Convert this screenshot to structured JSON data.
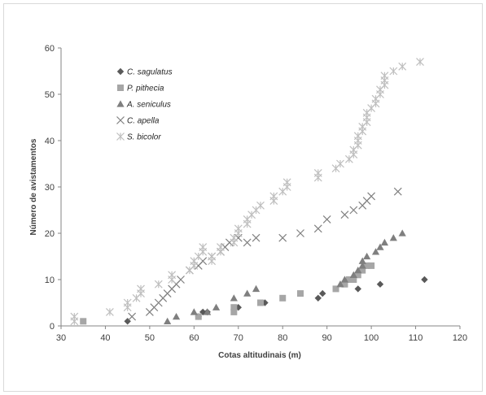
{
  "chart_data": {
    "type": "scatter",
    "xlabel": "Cotas altitudinais (m)",
    "ylabel": "Número de avistamentos",
    "xlim": [
      30,
      120
    ],
    "ylim": [
      0,
      60
    ],
    "x_ticks": [
      30,
      40,
      50,
      60,
      70,
      80,
      90,
      100,
      110,
      120
    ],
    "y_ticks": [
      0,
      10,
      20,
      30,
      40,
      50,
      60
    ],
    "grid": false,
    "legend_position": "top-left",
    "series": [
      {
        "name": "C. sagulatus",
        "marker": "diamond",
        "color": "#595959",
        "points": [
          [
            45,
            1
          ],
          [
            61,
            2
          ],
          [
            62,
            3
          ],
          [
            63,
            3
          ],
          [
            70,
            4
          ],
          [
            76,
            5
          ],
          [
            88,
            6
          ],
          [
            89,
            7
          ],
          [
            97,
            8
          ],
          [
            102,
            9
          ],
          [
            112,
            10
          ]
        ]
      },
      {
        "name": "P. pithecia",
        "marker": "square",
        "color": "#a6a6a6",
        "points": [
          [
            35,
            1
          ],
          [
            61,
            2
          ],
          [
            69,
            3
          ],
          [
            69,
            4
          ],
          [
            75,
            5
          ],
          [
            80,
            6
          ],
          [
            84,
            7
          ],
          [
            92,
            8
          ],
          [
            94,
            9
          ],
          [
            95,
            10
          ],
          [
            96,
            10
          ],
          [
            97,
            11
          ],
          [
            98,
            12
          ],
          [
            99,
            13
          ],
          [
            100,
            13
          ]
        ]
      },
      {
        "name": "A. seniculus",
        "marker": "triangle",
        "color": "#7f7f7f",
        "points": [
          [
            54,
            1
          ],
          [
            56,
            2
          ],
          [
            60,
            3
          ],
          [
            63,
            3
          ],
          [
            65,
            4
          ],
          [
            69,
            6
          ],
          [
            72,
            7
          ],
          [
            74,
            8
          ],
          [
            93,
            9
          ],
          [
            94,
            10
          ],
          [
            96,
            11
          ],
          [
            97,
            12
          ],
          [
            98,
            13
          ],
          [
            98,
            14
          ],
          [
            99,
            15
          ],
          [
            101,
            16
          ],
          [
            102,
            17
          ],
          [
            103,
            18
          ],
          [
            105,
            19
          ],
          [
            107,
            20
          ]
        ]
      },
      {
        "name": "C. apella",
        "marker": "x",
        "color": "#808080",
        "points": [
          [
            46,
            2
          ],
          [
            50,
            3
          ],
          [
            51,
            4
          ],
          [
            52,
            5
          ],
          [
            53,
            6
          ],
          [
            54,
            7
          ],
          [
            55,
            8
          ],
          [
            56,
            9
          ],
          [
            57,
            10
          ],
          [
            59,
            12
          ],
          [
            61,
            13
          ],
          [
            62,
            14
          ],
          [
            64,
            15
          ],
          [
            66,
            16
          ],
          [
            67,
            17
          ],
          [
            68,
            18
          ],
          [
            70,
            19
          ],
          [
            72,
            18
          ],
          [
            74,
            19
          ],
          [
            80,
            19
          ],
          [
            84,
            20
          ],
          [
            88,
            21
          ],
          [
            90,
            23
          ],
          [
            94,
            24
          ],
          [
            96,
            25
          ],
          [
            98,
            26
          ],
          [
            99,
            27
          ],
          [
            100,
            28
          ],
          [
            106,
            29
          ]
        ]
      },
      {
        "name": "S. bicolor",
        "marker": "asterisk",
        "color": "#bfbfbf",
        "points": [
          [
            33,
            1
          ],
          [
            33,
            2
          ],
          [
            41,
            3
          ],
          [
            45,
            4
          ],
          [
            45,
            5
          ],
          [
            47,
            6
          ],
          [
            48,
            7
          ],
          [
            48,
            8
          ],
          [
            52,
            9
          ],
          [
            55,
            10
          ],
          [
            55,
            11
          ],
          [
            59,
            12
          ],
          [
            60,
            13
          ],
          [
            60,
            14
          ],
          [
            61,
            15
          ],
          [
            62,
            16
          ],
          [
            62,
            17
          ],
          [
            64,
            14
          ],
          [
            64,
            15
          ],
          [
            66,
            16
          ],
          [
            66,
            17
          ],
          [
            69,
            18
          ],
          [
            69,
            19
          ],
          [
            70,
            20
          ],
          [
            70,
            21
          ],
          [
            72,
            22
          ],
          [
            72,
            23
          ],
          [
            73,
            24
          ],
          [
            74,
            25
          ],
          [
            75,
            26
          ],
          [
            78,
            27
          ],
          [
            78,
            28
          ],
          [
            80,
            29
          ],
          [
            81,
            30
          ],
          [
            81,
            31
          ],
          [
            88,
            32
          ],
          [
            88,
            33
          ],
          [
            92,
            34
          ],
          [
            93,
            35
          ],
          [
            95,
            36
          ],
          [
            96,
            37
          ],
          [
            96,
            38
          ],
          [
            97,
            39
          ],
          [
            97,
            40
          ],
          [
            97,
            41
          ],
          [
            98,
            42
          ],
          [
            98,
            43
          ],
          [
            99,
            44
          ],
          [
            99,
            45
          ],
          [
            99,
            46
          ],
          [
            100,
            47
          ],
          [
            101,
            48
          ],
          [
            101,
            49
          ],
          [
            102,
            50
          ],
          [
            102,
            51
          ],
          [
            103,
            52
          ],
          [
            103,
            53
          ],
          [
            103,
            54
          ],
          [
            105,
            55
          ],
          [
            107,
            56
          ],
          [
            111,
            57
          ]
        ]
      }
    ]
  }
}
